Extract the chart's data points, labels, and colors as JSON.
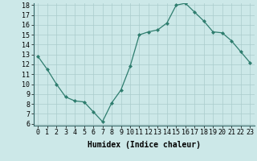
{
  "x": [
    0,
    1,
    2,
    3,
    4,
    5,
    6,
    7,
    8,
    9,
    10,
    11,
    12,
    13,
    14,
    15,
    16,
    17,
    18,
    19,
    20,
    21,
    22,
    23
  ],
  "y": [
    12.8,
    11.5,
    10.0,
    8.7,
    8.3,
    8.2,
    7.2,
    6.2,
    8.1,
    9.4,
    11.8,
    15.0,
    15.3,
    15.5,
    16.2,
    18.0,
    18.2,
    17.3,
    16.4,
    15.3,
    15.2,
    14.4,
    13.3,
    12.2
  ],
  "line_color": "#2e7d6e",
  "marker": "D",
  "marker_size": 2,
  "bg_color": "#cce8e8",
  "grid_color": "#aacccc",
  "xlabel": "Humidex (Indice chaleur)",
  "ylim": [
    6,
    18
  ],
  "xlim": [
    -0.5,
    23.5
  ],
  "xticks": [
    0,
    1,
    2,
    3,
    4,
    5,
    6,
    7,
    8,
    9,
    10,
    11,
    12,
    13,
    14,
    15,
    16,
    17,
    18,
    19,
    20,
    21,
    22,
    23
  ],
  "yticks": [
    6,
    7,
    8,
    9,
    10,
    11,
    12,
    13,
    14,
    15,
    16,
    17,
    18
  ],
  "xlabel_fontsize": 7,
  "tick_fontsize": 6
}
